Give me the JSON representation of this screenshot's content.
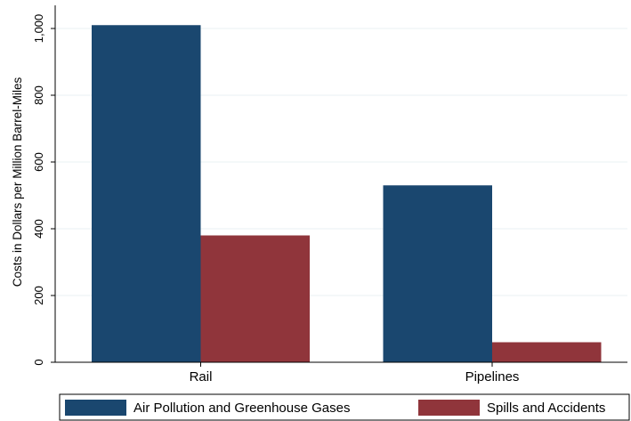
{
  "chart_data": {
    "type": "bar",
    "categories": [
      "Rail",
      "Pipelines"
    ],
    "series": [
      {
        "name": "Air Pollution and Greenhouse Gases",
        "color": "#1a476f",
        "values": [
          1010,
          530
        ]
      },
      {
        "name": "Spills and Accidents",
        "color": "#90353b",
        "values": [
          380,
          60
        ]
      }
    ],
    "ylabel": "Costs in Dollars per Million Barrel-Miles",
    "xlabel": "",
    "ylim": [
      0,
      1000
    ],
    "yticks": [
      0,
      200,
      400,
      600,
      800,
      1000
    ],
    "ytick_labels": [
      "0",
      "200",
      "400",
      "600",
      "800",
      "1,000"
    ],
    "grid": true,
    "legend_position": "bottom"
  }
}
